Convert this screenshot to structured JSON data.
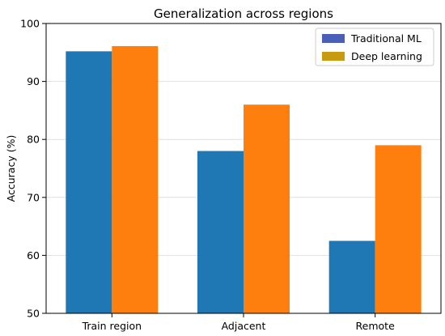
{
  "chart_data": {
    "type": "bar",
    "title": "Generalization across regions",
    "xlabel": "",
    "ylabel": "Accuracy (%)",
    "categories": [
      "Train region",
      "Adjacent",
      "Remote"
    ],
    "series": [
      {
        "name": "Traditional ML",
        "values": [
          95.2,
          78.0,
          62.5
        ],
        "color": "#1f77b4",
        "legend_color": "#4a5fb8"
      },
      {
        "name": "Deep learning",
        "values": [
          96.1,
          86.0,
          79.0
        ],
        "color": "#ff7f0e",
        "legend_color": "#c89a10"
      }
    ],
    "ylim": [
      50,
      100
    ],
    "yticks": [
      50,
      60,
      70,
      80,
      90,
      100
    ],
    "grid": true,
    "legend_position": "top-right"
  }
}
